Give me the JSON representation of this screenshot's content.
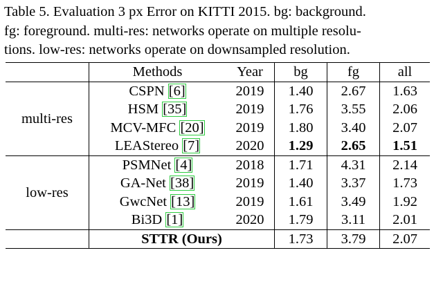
{
  "caption": [
    "Table 5. Evaluation 3 px Error on KITTI 2015. bg: background.",
    "fg: foreground. multi-res: networks operate on multiple resolu-",
    "tions. low-res: networks operate on downsampled resolution."
  ],
  "table": {
    "header": [
      "Methods",
      "Year",
      "bg",
      "fg",
      "all"
    ],
    "groups": [
      {
        "label": "multi-res",
        "rows": [
          {
            "method": "CSPN",
            "ref": "[6]",
            "year": "2019",
            "bg": "1.40",
            "fg": "2.67",
            "all": "1.63"
          },
          {
            "method": "HSM",
            "ref": "[35]",
            "year": "2019",
            "bg": "1.76",
            "fg": "3.55",
            "all": "2.06"
          },
          {
            "method": "MCV-MFC",
            "ref": "[20]",
            "year": "2019",
            "bg": "1.80",
            "fg": "3.40",
            "all": "2.07"
          },
          {
            "method": "LEAStereo",
            "ref": "[7]",
            "year": "2020",
            "bg": "1.29",
            "fg": "2.65",
            "all": "1.51",
            "bold": true
          }
        ]
      },
      {
        "label": "low-res",
        "rows": [
          {
            "method": "PSMNet",
            "ref": "[4]",
            "year": "2018",
            "bg": "1.71",
            "fg": "4.31",
            "all": "2.14"
          },
          {
            "method": "GA-Net",
            "ref": "[38]",
            "year": "2019",
            "bg": "1.40",
            "fg": "3.37",
            "all": "1.73"
          },
          {
            "method": "GwcNet",
            "ref": "[13]",
            "year": "2019",
            "bg": "1.61",
            "fg": "3.49",
            "all": "1.92"
          },
          {
            "method": "Bi3D",
            "ref": "[1]",
            "year": "2020",
            "bg": "1.79",
            "fg": "3.11",
            "all": "2.01"
          },
          {
            "method": "STTR (Ours)",
            "bg": "1.73",
            "fg": "3.79",
            "all": "2.07",
            "method_bold": true
          }
        ]
      }
    ]
  }
}
